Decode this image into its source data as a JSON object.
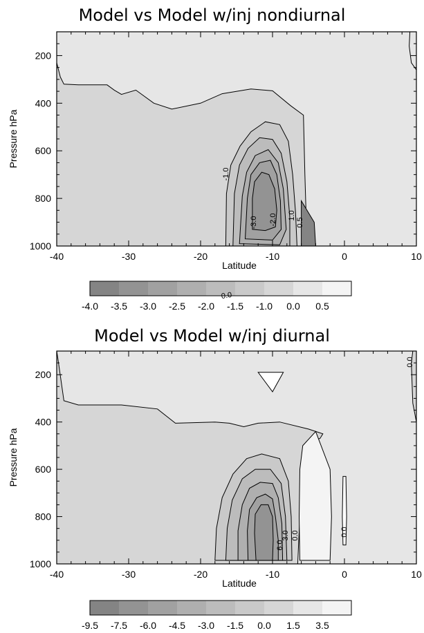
{
  "chart_data": [
    {
      "type": "contour",
      "title": "Model vs Model w/inj  nondiurnal",
      "xlabel": "Latitude",
      "ylabel": "Pressure hPa",
      "xlim": [
        -40,
        10
      ],
      "ylim": [
        1000,
        100
      ],
      "x_ticks": [
        "-40",
        "-30",
        "-20",
        "-10",
        "0",
        "10"
      ],
      "y_ticks": [
        "200",
        "400",
        "600",
        "800",
        "1000"
      ],
      "colorbar_labels": [
        "-4.0",
        "-3.5",
        "-3.0",
        "-2.5",
        "-2.0",
        "-1.5",
        "-1.0",
        "0.0",
        "0.5"
      ],
      "colorbar_colors": [
        "#848484",
        "#939393",
        "#a1a1a1",
        "#afafaf",
        "#bcbcbc",
        "#c9c9c9",
        "#d6d6d6",
        "#e6e6e6",
        "#f4f4f4"
      ],
      "contour_labels": [
        "-1.0",
        "-3.0",
        "-2.0",
        "1.0",
        "0.5"
      ],
      "regions": [
        {
          "level": "0.0",
          "color": "#e6e6e6",
          "points": [
            [
              -40,
              100
            ],
            [
              10,
              100
            ],
            [
              10,
              1000
            ],
            [
              -40,
              1000
            ]
          ]
        },
        {
          "level": "-1.0",
          "color": "#d6d6d6",
          "points": [
            [
              -40,
              1000
            ],
            [
              -40,
              230
            ],
            [
              -39.5,
              290
            ],
            [
              -39,
              320
            ],
            [
              -37,
              323
            ],
            [
              -33,
              323
            ],
            [
              -32,
              345
            ],
            [
              -31,
              363
            ],
            [
              -29,
              345
            ],
            [
              -26.5,
              400
            ],
            [
              -24,
              425
            ],
            [
              -20,
              400
            ],
            [
              -17,
              360
            ],
            [
              -13,
              340
            ],
            [
              -10,
              348
            ],
            [
              -7.5,
              410
            ],
            [
              -5.7,
              450
            ],
            [
              -5.5,
              700
            ],
            [
              -5.2,
              1000
            ]
          ]
        },
        {
          "level": "0.0",
          "color": "#e6e6e6",
          "points": [
            [
              9.1,
              100
            ],
            [
              10,
              100
            ],
            [
              10,
              260
            ],
            [
              9.3,
              230
            ],
            [
              9,
              160
            ]
          ]
        },
        {
          "level": "-1.5",
          "color": "#c9c9c9",
          "points": [
            [
              -16.5,
              1000
            ],
            [
              -16.4,
              780
            ],
            [
              -15.8,
              660
            ],
            [
              -14.5,
              580
            ],
            [
              -13,
              520
            ],
            [
              -11,
              478
            ],
            [
              -9,
              490
            ],
            [
              -7.8,
              560
            ],
            [
              -7.2,
              700
            ],
            [
              -6.8,
              860
            ],
            [
              -6.6,
              1000
            ]
          ]
        },
        {
          "level": "-2.0",
          "color": "#bcbcbc",
          "points": [
            [
              -15.5,
              1000
            ],
            [
              -15.3,
              780
            ],
            [
              -14.6,
              660
            ],
            [
              -13.4,
              590
            ],
            [
              -11.8,
              545
            ],
            [
              -10,
              552
            ],
            [
              -8.8,
              610
            ],
            [
              -8,
              730
            ],
            [
              -7.6,
              880
            ],
            [
              -7.6,
              1000
            ]
          ]
        },
        {
          "level": "-2.5",
          "color": "#afafaf",
          "points": [
            [
              -14.6,
              990
            ],
            [
              -14.2,
              790
            ],
            [
              -13.6,
              690
            ],
            [
              -12.4,
              620
            ],
            [
              -10.6,
              595
            ],
            [
              -9.2,
              650
            ],
            [
              -8.5,
              760
            ],
            [
              -8.1,
              930
            ],
            [
              -9,
              995
            ]
          ]
        },
        {
          "level": "-3.0",
          "color": "#a1a1a1",
          "points": [
            [
              -13.8,
              970
            ],
            [
              -13.5,
              800
            ],
            [
              -13,
              700
            ],
            [
              -11.8,
              650
            ],
            [
              -10.3,
              640
            ],
            [
              -9.4,
              700
            ],
            [
              -8.9,
              810
            ],
            [
              -8.8,
              930
            ],
            [
              -10,
              975
            ]
          ]
        },
        {
          "level": "-3.5",
          "color": "#939393",
          "points": [
            [
              -12.8,
              930
            ],
            [
              -12.8,
              800
            ],
            [
              -12.5,
              730
            ],
            [
              -11.5,
              690
            ],
            [
              -10.5,
              700
            ],
            [
              -9.7,
              760
            ],
            [
              -9.4,
              850
            ],
            [
              -9.6,
              920
            ],
            [
              -11,
              935
            ]
          ]
        },
        {
          "level": "-4.0",
          "color": "#848484",
          "points": [
            [
              -6,
              1000
            ],
            [
              -6,
              810
            ],
            [
              -4.2,
              900
            ],
            [
              -4,
              1000
            ]
          ]
        }
      ]
    },
    {
      "type": "contour",
      "title": "Model vs Model w/inj  diurnal",
      "xlabel": "Latitude",
      "ylabel": "Pressure hPa",
      "xlim": [
        -40,
        10
      ],
      "ylim": [
        1000,
        100
      ],
      "x_ticks": [
        "-40",
        "-30",
        "-20",
        "-10",
        "0",
        "10"
      ],
      "y_ticks": [
        "200",
        "400",
        "600",
        "800",
        "1000"
      ],
      "colorbar_labels": [
        "-9.5",
        "-7.5",
        "-6.0",
        "-4.5",
        "-3.0",
        "-1.5",
        "0.0",
        "1.5",
        "3.5"
      ],
      "colorbar_colors": [
        "#848484",
        "#939393",
        "#a1a1a1",
        "#afafaf",
        "#bcbcbc",
        "#c9c9c9",
        "#d6d6d6",
        "#e6e6e6",
        "#f4f4f4"
      ],
      "contour_labels": [
        "0.0",
        "6.0",
        "3.0",
        "0.0",
        "0.0",
        "0.0"
      ],
      "regions": [
        {
          "level": "-1.5",
          "color": "#d6d6d6",
          "points": [
            [
              -40,
              100
            ],
            [
              10,
              100
            ],
            [
              10,
              1000
            ],
            [
              -40,
              1000
            ]
          ]
        },
        {
          "level": "-1.5",
          "color": "#d6d6d6",
          "points": [
            [
              -40,
              1000
            ],
            [
              -40,
              100
            ],
            [
              -40,
              100
            ]
          ]
        },
        {
          "level": "0.0",
          "color": "#e6e6e6",
          "points": [
            [
              -40,
              100
            ],
            [
              -39.8,
              140
            ],
            [
              -39,
              310
            ],
            [
              -37,
              328
            ],
            [
              -31,
              328
            ],
            [
              -26,
              345
            ],
            [
              -23.5,
              405
            ],
            [
              -18,
              400
            ],
            [
              -16,
              405
            ],
            [
              -14,
              420
            ],
            [
              -12,
              405
            ],
            [
              -9,
              400
            ],
            [
              -5,
              430
            ],
            [
              -3,
              450
            ],
            [
              -3.4,
              470
            ],
            [
              -5,
              480
            ],
            [
              -5.4,
              600
            ],
            [
              -6,
              700
            ],
            [
              -6.2,
              800
            ],
            [
              -6.5,
              1000
            ],
            [
              10,
              1000
            ],
            [
              10,
              400
            ],
            [
              9.5,
              320
            ],
            [
              9.3,
              150
            ],
            [
              9.5,
              100
            ]
          ]
        },
        {
          "level": "-3.0",
          "color": "#c9c9c9",
          "points": [
            [
              -18,
              985
            ],
            [
              -17.8,
              850
            ],
            [
              -17,
              720
            ],
            [
              -15.5,
              620
            ],
            [
              -13.6,
              555
            ],
            [
              -11.5,
              535
            ],
            [
              -9,
              555
            ],
            [
              -7.8,
              650
            ],
            [
              -7.4,
              800
            ],
            [
              -7.3,
              985
            ]
          ]
        },
        {
          "level": "-4.5",
          "color": "#bcbcbc",
          "points": [
            [
              -16.5,
              985
            ],
            [
              -16.3,
              850
            ],
            [
              -15.6,
              730
            ],
            [
              -14.2,
              640
            ],
            [
              -12.4,
              600
            ],
            [
              -10.3,
              600
            ],
            [
              -8.8,
              660
            ],
            [
              -8.2,
              800
            ],
            [
              -8,
              985
            ]
          ]
        },
        {
          "level": "-6.0",
          "color": "#afafaf",
          "points": [
            [
              -14.8,
              985
            ],
            [
              -14.8,
              860
            ],
            [
              -14.2,
              750
            ],
            [
              -13.2,
              680
            ],
            [
              -11.7,
              655
            ],
            [
              -10,
              660
            ],
            [
              -9.2,
              720
            ],
            [
              -8.7,
              830
            ],
            [
              -8.6,
              985
            ]
          ]
        },
        {
          "level": "-7.5",
          "color": "#a1a1a1",
          "points": [
            [
              -13.4,
              985
            ],
            [
              -13.5,
              860
            ],
            [
              -13.2,
              770
            ],
            [
              -12.2,
              720
            ],
            [
              -11,
              705
            ],
            [
              -10,
              725
            ],
            [
              -9.6,
              800
            ],
            [
              -9.2,
              900
            ],
            [
              -9.2,
              985
            ]
          ]
        },
        {
          "level": "-9.5",
          "color": "#939393",
          "points": [
            [
              -12.3,
              985
            ],
            [
              -12.5,
              870
            ],
            [
              -12.4,
              790
            ],
            [
              -11.6,
              750
            ],
            [
              -10.6,
              750
            ],
            [
              -10,
              800
            ],
            [
              -9.9,
              900
            ],
            [
              -10,
              985
            ]
          ]
        },
        {
          "level": "1.5",
          "color": "#f4f4f4",
          "points": [
            [
              -6.2,
              985
            ],
            [
              -6.3,
              800
            ],
            [
              -6.2,
              600
            ],
            [
              -5.8,
              500
            ],
            [
              -4,
              440
            ],
            [
              -2,
              600
            ],
            [
              -1.8,
              800
            ],
            [
              -2,
              985
            ]
          ]
        },
        {
          "level": "1.5",
          "color": "#ffffff",
          "points": [
            [
              -12,
              190
            ],
            [
              -8.5,
              190
            ],
            [
              -10,
              272
            ]
          ]
        },
        {
          "level": "1.5",
          "color": "#ffffff",
          "points": [
            [
              -0.2,
              630
            ],
            [
              0.2,
              630
            ],
            [
              0.3,
              800
            ],
            [
              0.2,
              920
            ],
            [
              -0.2,
              920
            ],
            [
              -0.3,
              800
            ]
          ]
        }
      ]
    }
  ]
}
